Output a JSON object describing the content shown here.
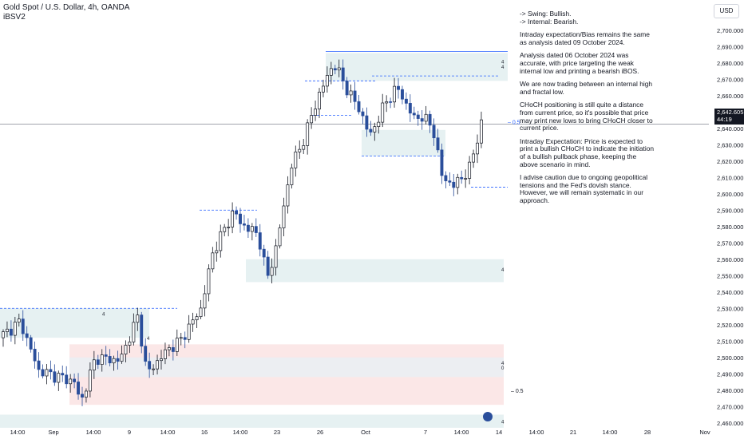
{
  "header": {
    "title": "Gold Spot / U.S. Dollar, 4h, OANDA",
    "indicator": "iBSV2"
  },
  "currency_button": "USD",
  "price_tag": {
    "price": "2,642.605",
    "countdown": "44:19"
  },
  "notes": [
    "-> Swing:  Bullish.\n-> Internal:  Bearish.",
    "Intraday expectation/Bias remains the same as analysis dated 09 October 2024.",
    "Analysis dated 06 October 2024 was accurate, with price targeting the weak internal low and printing a bearish iBOS.",
    "We are now trading between an internal high and fractal low.",
    "CHoCH positioning is still quite a distance from current price, so it's possible that price may print new lows to bring CHoCH closer to current price.",
    "Intraday Expectation: Price is expected to print a bullish CHoCH to indicate the initiation of a bullish pullback phase, keeping the above scenario in mind.",
    "I advise caution due to ongoing geopolitical tensions and the Fed's dovish stance. However, we will remain systematic in our approach."
  ],
  "zone_labels": [
    "4",
    "4",
    "4",
    "4",
    "4",
    "0",
    "4",
    "4"
  ],
  "fib_labels": [
    "0.5",
    "0.5"
  ],
  "colors": {
    "bull": "#131722",
    "bear": "#2a4e9b",
    "demand_zone": "#e6f1f2",
    "supply_zone": "#fbe7e7",
    "gray_zone": "#eceef2",
    "structure_line": "#2962ff",
    "price_line": "#6b6f7a"
  },
  "chart_data": {
    "type": "candlestick",
    "title": "Gold Spot / U.S. Dollar, 4h, OANDA",
    "y_range": [
      2455,
      2705
    ],
    "y_ticks": [
      "2,700.000",
      "2,690.000",
      "2,680.000",
      "2,670.000",
      "2,660.000",
      "2,650.000",
      "2,640.000",
      "2,630.000",
      "2,620.000",
      "2,610.000",
      "2,600.000",
      "2,590.000",
      "2,580.000",
      "2,570.000",
      "2,560.000",
      "2,550.000",
      "2,540.000",
      "2,530.000",
      "2,520.000",
      "2,510.000",
      "2,500.000",
      "2,490.000",
      "2,480.000",
      "2,470.000",
      "2,460.000"
    ],
    "x_ticks": [
      "14:00",
      "Sep",
      "14:00",
      "9",
      "14:00",
      "16",
      "14:00",
      "23",
      "26",
      "Oct",
      "7",
      "14:00",
      "14",
      "14:00",
      "21",
      "14:00",
      "28",
      "Nov"
    ],
    "last_price": 2642.605,
    "waypoints": [
      {
        "t": 0,
        "p": 2512
      },
      {
        "t": 0.35,
        "p": 2522
      },
      {
        "t": 0.65,
        "p": 2492
      },
      {
        "t": 1,
        "p": 2488
      },
      {
        "t": 1.25,
        "p": 2485
      },
      {
        "t": 1.35,
        "p": 2472
      },
      {
        "t": 1.6,
        "p": 2500
      },
      {
        "t": 2,
        "p": 2498
      },
      {
        "t": 2.3,
        "p": 2525
      },
      {
        "t": 2.45,
        "p": 2490
      },
      {
        "t": 2.8,
        "p": 2505
      },
      {
        "t": 3,
        "p": 2510
      },
      {
        "t": 3.35,
        "p": 2530
      },
      {
        "t": 3.55,
        "p": 2565
      },
      {
        "t": 3.9,
        "p": 2590
      },
      {
        "t": 4,
        "p": 2582
      },
      {
        "t": 4.3,
        "p": 2575
      },
      {
        "t": 4.45,
        "p": 2548
      },
      {
        "t": 4.6,
        "p": 2568
      },
      {
        "t": 4.85,
        "p": 2618
      },
      {
        "t": 5,
        "p": 2628
      },
      {
        "t": 5.3,
        "p": 2660
      },
      {
        "t": 5.55,
        "p": 2680
      },
      {
        "t": 5.8,
        "p": 2662
      },
      {
        "t": 6,
        "p": 2650
      },
      {
        "t": 6.15,
        "p": 2635
      },
      {
        "t": 6.4,
        "p": 2655
      },
      {
        "t": 6.6,
        "p": 2665
      },
      {
        "t": 6.9,
        "p": 2645
      },
      {
        "t": 7,
        "p": 2648
      },
      {
        "t": 7.2,
        "p": 2640
      },
      {
        "t": 7.35,
        "p": 2610
      },
      {
        "t": 7.55,
        "p": 2605
      },
      {
        "t": 7.8,
        "p": 2615
      },
      {
        "t": 8,
        "p": 2643
      }
    ]
  }
}
